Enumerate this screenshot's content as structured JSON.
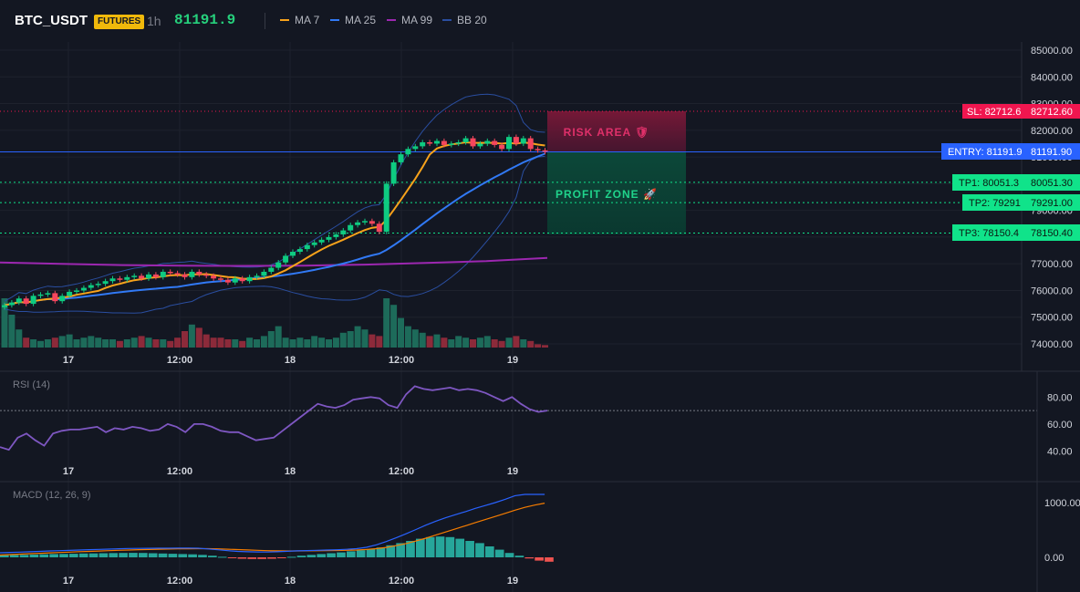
{
  "header": {
    "symbol": "BTC_USDT",
    "badge": "FUTURES",
    "timeframe": "1h",
    "price": "81191.9",
    "legend": [
      {
        "label": "MA 7",
        "color": "#f7a21b"
      },
      {
        "label": "MA 25",
        "color": "#3179f5"
      },
      {
        "label": "MA 99",
        "color": "#9c27b0"
      },
      {
        "label": "BB 20",
        "color": "#2a4ea0"
      }
    ]
  },
  "price_axis": {
    "ticks": [
      "85000.00",
      "84000.00",
      "83000.00",
      "82000.00",
      "81000.00",
      "80000.00",
      "79000.00",
      "78000.00",
      "77000.00",
      "76000.00",
      "75000.00",
      "74000.00"
    ]
  },
  "x_axis": {
    "labels": [
      "17",
      "12:00",
      "18",
      "12:00",
      "19"
    ]
  },
  "levels": {
    "sl": {
      "tag": "SL: 82712.6",
      "value": "82712.60",
      "color": "#f0164f"
    },
    "entry": {
      "tag": "ENTRY: 81191.9",
      "value": "81191.90",
      "color": "#2962ff"
    },
    "tp1": {
      "tag": "TP1: 80051.3",
      "value": "80051.30",
      "color": "#0ecb81"
    },
    "tp2": {
      "tag": "TP2: 79291",
      "value": "79291.00",
      "color": "#0ecb81"
    },
    "tp3": {
      "tag": "TP3: 78150.4",
      "value": "78150.40",
      "color": "#0ecb81"
    }
  },
  "zones": {
    "risk_label": "RISK AREA 🛡",
    "profit_label": "PROFIT ZONE 🚀"
  },
  "rsi": {
    "title": "RSI (14)",
    "ticks": [
      "80.00",
      "60.00",
      "40.00"
    ]
  },
  "macd": {
    "title": "MACD (12, 26, 9)",
    "ticks": [
      "1000.00",
      "0.00"
    ]
  },
  "chart_data": {
    "type": "candlestick",
    "title": "BTC_USDT 1h",
    "ylim": [
      74000,
      85000
    ],
    "x_labels": [
      "17",
      "12:00",
      "18",
      "12:00",
      "19"
    ],
    "close_series": [
      75450,
      75550,
      75700,
      75500,
      75800,
      75850,
      75900,
      75600,
      75800,
      75950,
      76000,
      76100,
      76200,
      76250,
      76350,
      76450,
      76400,
      76500,
      76550,
      76450,
      76600,
      76500,
      76700,
      76650,
      76600,
      76500,
      76700,
      76600,
      76550,
      76450,
      76400,
      76300,
      76450,
      76350,
      76500,
      76550,
      76700,
      76850,
      77050,
      77300,
      77450,
      77550,
      77700,
      77800,
      77900,
      78000,
      78100,
      78250,
      78450,
      78550,
      78600,
      78500,
      78200,
      80000,
      80800,
      81100,
      81300,
      81400,
      81550,
      81500,
      81600,
      81450,
      81500,
      81550,
      81700,
      81400,
      81500,
      81600,
      81450,
      81300,
      81750,
      81500,
      81700,
      81300,
      81250,
      81200
    ],
    "series": [
      {
        "name": "MA 7",
        "color": "#f7a21b"
      },
      {
        "name": "MA 25",
        "color": "#3179f5"
      },
      {
        "name": "MA 99",
        "color": "#9c27b0",
        "values": [
          77050,
          77000,
          76950,
          76930,
          76920,
          76930,
          76970,
          77030,
          77100,
          77220
        ]
      },
      {
        "name": "BB 20",
        "color": "#2a4ea0"
      }
    ],
    "levels": {
      "SL": 82712.6,
      "ENTRY": 81191.9,
      "TP1": 80051.3,
      "TP2": 79291,
      "TP3": 78150.4
    },
    "rsi": {
      "ylim": [
        35,
        95
      ],
      "overbought": 70,
      "values": [
        43,
        41,
        50,
        53,
        48,
        44,
        53,
        55,
        56,
        56,
        57,
        58,
        54,
        57,
        56,
        58,
        57,
        55,
        56,
        60,
        58,
        54,
        60,
        60,
        58,
        55,
        54,
        54,
        51,
        48,
        49,
        50,
        55,
        60,
        65,
        70,
        75,
        73,
        72,
        74,
        78,
        79,
        80,
        79,
        74,
        72,
        82,
        88,
        86,
        85,
        86,
        87,
        85,
        86,
        85,
        83,
        80,
        77,
        80,
        75,
        71,
        69,
        70
      ]
    },
    "macd": {
      "ylim": [
        -150,
        1300
      ],
      "histogram": [
        40,
        42,
        45,
        50,
        55,
        60,
        62,
        65,
        70,
        72,
        75,
        78,
        80,
        82,
        80,
        75,
        70,
        65,
        60,
        55,
        45,
        30,
        10,
        -10,
        -25,
        -30,
        -30,
        -25,
        -10,
        10,
        30,
        45,
        60,
        75,
        90,
        110,
        130,
        150,
        180,
        220,
        260,
        300,
        340,
        370,
        380,
        370,
        340,
        300,
        260,
        200,
        140,
        80,
        30,
        -20,
        -60,
        -80
      ]
    }
  }
}
